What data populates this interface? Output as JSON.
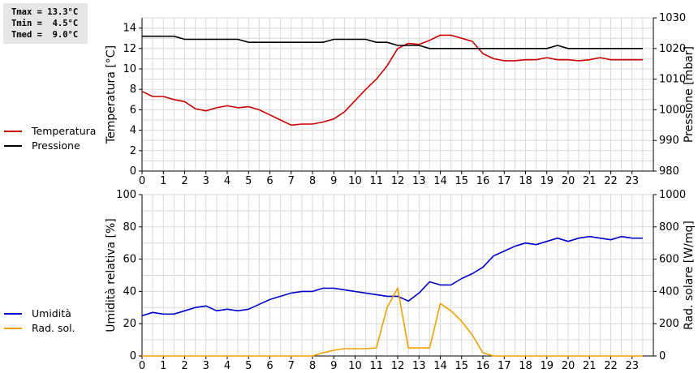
{
  "stats": {
    "tmax": "Tmax = 13.3°C",
    "tmin": "Tmin =  4.5°C",
    "tmed": "Tmed =  9.0°C"
  },
  "chart_data": [
    {
      "type": "line",
      "xlabel": "",
      "xlim": [
        0,
        24
      ],
      "xticks": [
        0,
        1,
        2,
        3,
        4,
        5,
        6,
        7,
        8,
        9,
        10,
        11,
        12,
        13,
        14,
        15,
        16,
        17,
        18,
        19,
        20,
        21,
        22,
        23
      ],
      "ylabel": "Temperatura [°C]",
      "ylim": [
        0,
        15
      ],
      "yticks": [
        0,
        2,
        4,
        6,
        8,
        10,
        12,
        14
      ],
      "y2label": "Pressione [mbar]",
      "y2lim": [
        980,
        1030
      ],
      "y2ticks": [
        980,
        990,
        1000,
        1010,
        1020,
        1030
      ],
      "grid": true,
      "legend_position": "left",
      "series": [
        {
          "name": "Temperatura",
          "axis": "left",
          "color": "#cc0000",
          "x": [
            0,
            0.5,
            1,
            1.5,
            2,
            2.5,
            3,
            3.5,
            4,
            4.5,
            5,
            5.5,
            6,
            6.5,
            7,
            7.5,
            8,
            8.5,
            9,
            9.5,
            10,
            10.5,
            11,
            11.5,
            12,
            12.5,
            13,
            13.5,
            14,
            14.5,
            15,
            15.5,
            16,
            16.5,
            17,
            17.5,
            18,
            18.5,
            19,
            19.5,
            20,
            20.5,
            21,
            21.5,
            22,
            22.5,
            23,
            23.5
          ],
          "values": [
            7.8,
            7.3,
            7.3,
            7.0,
            6.8,
            6.1,
            5.9,
            6.2,
            6.4,
            6.2,
            6.3,
            6.0,
            5.5,
            5.0,
            4.5,
            4.6,
            4.6,
            4.8,
            5.1,
            5.8,
            6.9,
            8.0,
            9.0,
            10.3,
            12.0,
            12.5,
            12.4,
            12.8,
            13.3,
            13.3,
            13.0,
            12.7,
            11.5,
            11.0,
            10.8,
            10.8,
            10.9,
            10.9,
            11.1,
            10.9,
            10.9,
            10.8,
            10.9,
            11.1,
            10.9,
            10.9,
            10.9,
            10.9
          ]
        },
        {
          "name": "Pressione",
          "axis": "right",
          "color": "#000000",
          "x": [
            0,
            0.5,
            1,
            1.5,
            2,
            2.5,
            3,
            3.5,
            4,
            4.5,
            5,
            5.5,
            6,
            6.5,
            7,
            7.5,
            8,
            8.5,
            9,
            9.5,
            10,
            10.5,
            11,
            11.5,
            12,
            12.5,
            13,
            13.5,
            14,
            14.5,
            15,
            15.5,
            16,
            16.5,
            17,
            17.5,
            18,
            18.5,
            19,
            19.5,
            20,
            20.5,
            21,
            21.5,
            22,
            22.5,
            23,
            23.5
          ],
          "values": [
            1024,
            1024,
            1024,
            1024,
            1023,
            1023,
            1023,
            1023,
            1023,
            1023,
            1022,
            1022,
            1022,
            1022,
            1022,
            1022,
            1022,
            1022,
            1023,
            1023,
            1023,
            1023,
            1022,
            1022,
            1021,
            1021,
            1021,
            1020,
            1020,
            1020,
            1020,
            1020,
            1020,
            1020,
            1020,
            1020,
            1020,
            1020,
            1020,
            1021,
            1020,
            1020,
            1020,
            1020,
            1020,
            1020,
            1020,
            1020
          ]
        }
      ]
    },
    {
      "type": "line",
      "xlabel": "",
      "xlim": [
        0,
        24
      ],
      "xticks": [
        0,
        1,
        2,
        3,
        4,
        5,
        6,
        7,
        8,
        9,
        10,
        11,
        12,
        13,
        14,
        15,
        16,
        17,
        18,
        19,
        20,
        21,
        22,
        23
      ],
      "ylabel": "Umidità relativa [%]",
      "ylim": [
        0,
        100
      ],
      "yticks": [
        0,
        20,
        40,
        60,
        80,
        100
      ],
      "y2label": "Rad. solare [W/mq]",
      "y2lim": [
        0,
        1000
      ],
      "y2ticks": [
        0,
        200,
        400,
        600,
        800,
        1000
      ],
      "grid": true,
      "legend_position": "left",
      "series": [
        {
          "name": "Umidità",
          "axis": "left",
          "color": "#0000cc",
          "x": [
            0,
            0.5,
            1,
            1.5,
            2,
            2.5,
            3,
            3.5,
            4,
            4.5,
            5,
            5.5,
            6,
            6.5,
            7,
            7.5,
            8,
            8.5,
            9,
            9.5,
            10,
            10.5,
            11,
            11.5,
            12,
            12.5,
            13,
            13.5,
            14,
            14.5,
            15,
            15.5,
            16,
            16.5,
            17,
            17.5,
            18,
            18.5,
            19,
            19.5,
            20,
            20.5,
            21,
            21.5,
            22,
            22.5,
            23,
            23.5
          ],
          "values": [
            25,
            27,
            26,
            26,
            28,
            30,
            31,
            28,
            29,
            28,
            29,
            32,
            35,
            37,
            39,
            40,
            40,
            42,
            42,
            41,
            40,
            39,
            38,
            37,
            37,
            34,
            39,
            46,
            44,
            44,
            48,
            51,
            55,
            62,
            65,
            68,
            70,
            69,
            71,
            73,
            71,
            73,
            74,
            73,
            72,
            74,
            73,
            73
          ]
        },
        {
          "name": "Rad. sol.",
          "axis": "right",
          "color": "#f0a000",
          "x": [
            0,
            0.5,
            1,
            1.5,
            2,
            2.5,
            3,
            3.5,
            4,
            4.5,
            5,
            5.5,
            6,
            6.5,
            7,
            7.5,
            8,
            8.5,
            9,
            9.5,
            10,
            10.5,
            11,
            11.5,
            12,
            12.5,
            13,
            13.5,
            14,
            14.5,
            15,
            15.5,
            16,
            16.5,
            17,
            17.5,
            18,
            18.5,
            19,
            19.5,
            20,
            20.5,
            21,
            21.5,
            22,
            22.5,
            23,
            23.5
          ],
          "values": [
            0,
            0,
            0,
            0,
            0,
            0,
            0,
            0,
            0,
            0,
            0,
            0,
            0,
            0,
            0,
            0,
            0,
            20,
            35,
            45,
            45,
            45,
            50,
            300,
            420,
            50,
            50,
            50,
            325,
            280,
            215,
            130,
            20,
            0,
            0,
            0,
            0,
            0,
            0,
            0,
            0,
            0,
            0,
            0,
            0,
            0,
            0,
            0
          ]
        }
      ]
    }
  ]
}
